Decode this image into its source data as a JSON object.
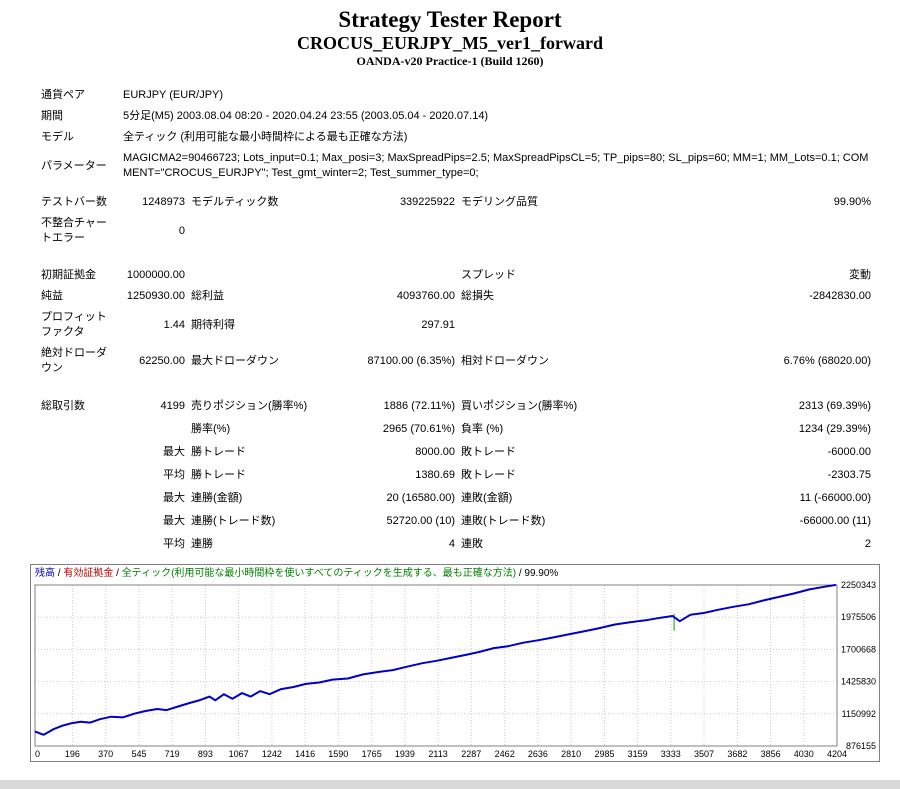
{
  "header": {
    "title": "Strategy Tester Report",
    "subtitle": "CROCUS_EURJPY_M5_ver1_forward",
    "build": "OANDA-v20 Practice-1 (Build 1260)"
  },
  "settings": {
    "symbol_label": "通貨ペア",
    "symbol_value": "EURJPY (EUR/JPY)",
    "period_label": "期間",
    "period_value": "5分足(M5) 2003.08.04 08:20 - 2020.04.24 23:55 (2003.05.04 - 2020.07.14)",
    "model_label": "モデル",
    "model_value": "全ティック (利用可能な最小時間枠による最も正確な方法)",
    "params_label": "パラメーター",
    "params_value": "MAGICMA2=90466723; Lots_input=0.1; Max_posi=3; MaxSpreadPips=2.5; MaxSpreadPipsCL=5; TP_pips=80; SL_pips=60; MM=1; MM_Lots=0.1; COMMENT=\"CROCUS_EURJPY\"; Test_gmt_winter=2; Test_summer_type=0;",
    "bars_label": "テストバー数",
    "bars_value": "1248973",
    "ticks_label": "モデルティック数",
    "ticks_value": "339225922",
    "quality_label": "モデリング品質",
    "quality_value": "99.90%",
    "mismatch_label": "不整合チャートエラー",
    "mismatch_value": "0"
  },
  "results": {
    "deposit_label": "初期証拠金",
    "deposit_value": "1000000.00",
    "spread_label": "スプレッド",
    "spread_value": "変動",
    "net_profit_label": "純益",
    "net_profit_value": "1250930.00",
    "gross_profit_label": "総利益",
    "gross_profit_value": "4093760.00",
    "gross_loss_label": "総損失",
    "gross_loss_value": "-2842830.00",
    "profit_factor_label": "プロフィットファクタ",
    "profit_factor_value": "1.44",
    "expected_payoff_label": "期待利得",
    "expected_payoff_value": "297.91",
    "abs_dd_label": "絶対ドローダウン",
    "abs_dd_value": "62250.00",
    "max_dd_label": "最大ドローダウン",
    "max_dd_value": "87100.00 (6.35%)",
    "rel_dd_label": "相対ドローダウン",
    "rel_dd_value": "6.76% (68020.00)"
  },
  "trades": {
    "total_label": "総取引数",
    "total_value": "4199",
    "short_label": "売りポジション(勝率%)",
    "short_value": "1886 (72.11%)",
    "long_label": "買いポジション(勝率%)",
    "long_value": "2313 (69.39%)",
    "win_label": "勝率(%)",
    "win_value": "2965 (70.61%)",
    "loss_label": "負率 (%)",
    "loss_value": "1234 (29.39%)",
    "max_label": "最大",
    "avg_label": "平均",
    "largest_win_label": "勝トレード",
    "largest_win_value": "8000.00",
    "largest_loss_label": "敗トレード",
    "largest_loss_value": "-6000.00",
    "avg_win_label": "勝トレード",
    "avg_win_value": "1380.69",
    "avg_loss_label": "敗トレード",
    "avg_loss_value": "-2303.75",
    "conwin_money_label": "連勝(金額)",
    "conwin_money_value": "20 (16580.00)",
    "conloss_money_label": "連敗(金額)",
    "conloss_money_value": "11 (-66000.00)",
    "conwin_count_label": "連勝(トレード数)",
    "conwin_count_value": "52720.00 (10)",
    "conloss_count_label": "連敗(トレード数)",
    "conloss_count_value": "-66000.00 (11)",
    "avg_conwin_label": "連勝",
    "avg_conwin_value": "4",
    "avg_conloss_label": "連敗",
    "avg_conloss_value": "2"
  },
  "chart_data": {
    "type": "line",
    "caption_segments": [
      {
        "text": "残高",
        "color": "#0000C8"
      },
      {
        "text": " / ",
        "color": "#000000"
      },
      {
        "text": "有効証拠金",
        "color": "#C00000"
      },
      {
        "text": " / ",
        "color": "#000000"
      },
      {
        "text": "全ティック(利用可能な最小時間枠を使いすべてのティックを生成する、最も正確な方法)",
        "color": "#008000"
      },
      {
        "text": " / 99.90%",
        "color": "#000000"
      }
    ],
    "xlabel": "",
    "ylabel": "",
    "x_ticks": [
      0,
      196,
      370,
      545,
      719,
      893,
      1067,
      1242,
      1416,
      1590,
      1765,
      1939,
      2113,
      2287,
      2462,
      2636,
      2810,
      2985,
      3159,
      3333,
      3507,
      3682,
      3856,
      4030,
      4204
    ],
    "y_ticks": [
      876155,
      1150992,
      1425830,
      1700668,
      1975506,
      2250343
    ],
    "x_range": [
      0,
      4204
    ],
    "y_range": [
      876155,
      2250343
    ],
    "grid": true,
    "legend_position": "top-left-caption",
    "series": [
      {
        "name": "残高",
        "color": "#0000C8",
        "width": 2,
        "points": [
          [
            0,
            1000000
          ],
          [
            20,
            988000
          ],
          [
            45,
            972000
          ],
          [
            70,
            995000
          ],
          [
            100,
            1022000
          ],
          [
            140,
            1048000
          ],
          [
            190,
            1070000
          ],
          [
            240,
            1083000
          ],
          [
            290,
            1076000
          ],
          [
            340,
            1105000
          ],
          [
            400,
            1126000
          ],
          [
            460,
            1120000
          ],
          [
            520,
            1152000
          ],
          [
            580,
            1175000
          ],
          [
            640,
            1192000
          ],
          [
            690,
            1183000
          ],
          [
            750,
            1213000
          ],
          [
            810,
            1243000
          ],
          [
            865,
            1268000
          ],
          [
            915,
            1298000
          ],
          [
            945,
            1266000
          ],
          [
            990,
            1318000
          ],
          [
            1035,
            1280000
          ],
          [
            1085,
            1328000
          ],
          [
            1130,
            1298000
          ],
          [
            1180,
            1345000
          ],
          [
            1230,
            1318000
          ],
          [
            1290,
            1362000
          ],
          [
            1355,
            1380000
          ],
          [
            1420,
            1406000
          ],
          [
            1490,
            1418000
          ],
          [
            1560,
            1443000
          ],
          [
            1640,
            1452000
          ],
          [
            1720,
            1487000
          ],
          [
            1800,
            1508000
          ],
          [
            1875,
            1524000
          ],
          [
            1950,
            1553000
          ],
          [
            2030,
            1583000
          ],
          [
            2105,
            1603000
          ],
          [
            2180,
            1628000
          ],
          [
            2255,
            1653000
          ],
          [
            2330,
            1679000
          ],
          [
            2405,
            1712000
          ],
          [
            2480,
            1728000
          ],
          [
            2560,
            1758000
          ],
          [
            2640,
            1779000
          ],
          [
            2705,
            1799000
          ],
          [
            2780,
            1824000
          ],
          [
            2860,
            1849000
          ],
          [
            2950,
            1879000
          ],
          [
            3040,
            1913000
          ],
          [
            3120,
            1933000
          ],
          [
            3200,
            1949000
          ],
          [
            3280,
            1971000
          ],
          [
            3342,
            1986000
          ],
          [
            3380,
            1941000
          ],
          [
            3435,
            1996000
          ],
          [
            3505,
            2011000
          ],
          [
            3580,
            2039000
          ],
          [
            3660,
            2064000
          ],
          [
            3740,
            2086000
          ],
          [
            3820,
            2119000
          ],
          [
            3900,
            2149000
          ],
          [
            3980,
            2179000
          ],
          [
            4060,
            2213000
          ],
          [
            4140,
            2236000
          ],
          [
            4199,
            2250930
          ]
        ]
      }
    ],
    "equity_mark": {
      "x": 3350,
      "y_from": 1860000,
      "y_to": 2005000,
      "color": "#00A000"
    }
  }
}
